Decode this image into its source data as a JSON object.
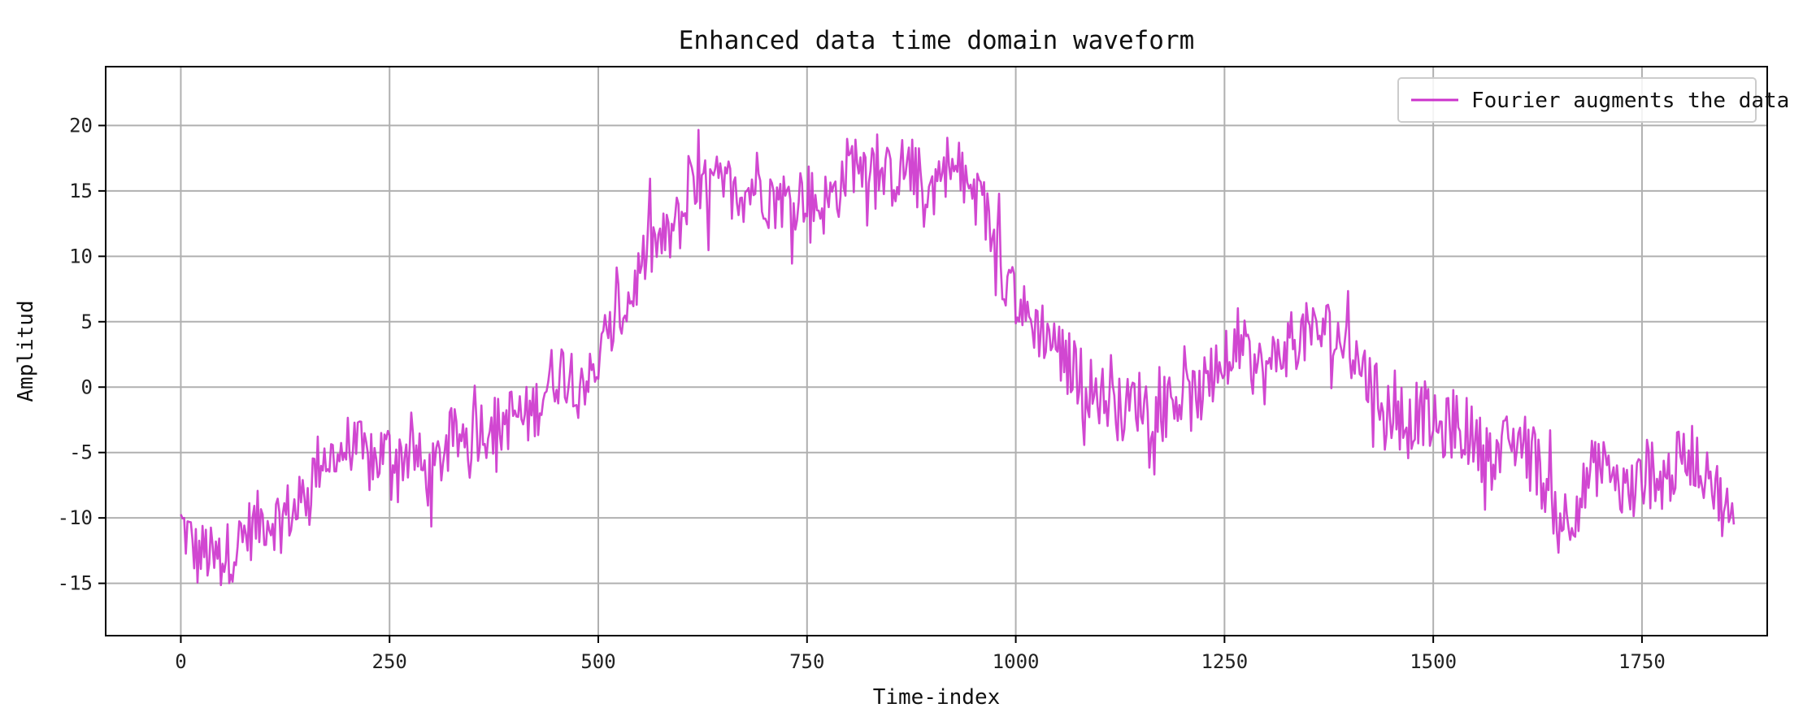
{
  "chart_data": {
    "type": "line",
    "title": "Enhanced data time domain waveform",
    "xlabel": "Time-index",
    "ylabel": "Amplitud",
    "xlim": [
      -90,
      1900
    ],
    "ylim": [
      -19,
      24.5
    ],
    "x_ticks": [
      0,
      250,
      500,
      750,
      1000,
      1250,
      1500,
      1750
    ],
    "y_ticks": [
      -15,
      -10,
      -5,
      0,
      5,
      10,
      15,
      20
    ],
    "grid": true,
    "legend_position": "top-right",
    "series": [
      {
        "name": "Fourier augments the data",
        "color": "#cc33cc",
        "x_start": 0,
        "x_step": 10,
        "values": [
          -10.5,
          -11.5,
          -13,
          -12.5,
          -13.5,
          -13,
          -12.5,
          -12,
          -11,
          -10.5,
          -10,
          -10,
          -10,
          -9.5,
          -9.5,
          -8,
          -6.5,
          -5,
          -5.5,
          -5,
          -4.5,
          -4.5,
          -5.5,
          -6,
          -5,
          -5,
          -5.5,
          -5,
          -5,
          -6.5,
          -7,
          -5.5,
          -4.5,
          -4,
          -3.5,
          -3.5,
          -3,
          -3,
          -3,
          -2.5,
          -2,
          -2.5,
          -2,
          -1,
          0.5,
          1,
          1.5,
          1,
          1,
          0.5,
          2,
          3,
          5,
          6,
          7,
          9,
          10.5,
          11,
          11,
          12,
          13,
          14.5,
          15,
          15,
          15.5,
          15,
          15.5,
          15,
          15,
          16,
          15,
          14,
          14.5,
          14,
          14.5,
          15,
          14,
          14,
          14.5,
          15.5,
          17,
          17.5,
          17,
          17,
          16,
          16,
          16.5,
          17,
          16,
          15.5,
          15,
          17,
          17,
          16,
          15.5,
          14.5,
          14,
          12,
          10,
          8,
          7,
          5.5,
          5,
          4.5,
          4,
          3,
          2,
          1.5,
          0.5,
          0,
          -0.5,
          -1,
          -1.5,
          -2,
          -1,
          -1,
          -1.5,
          -2,
          -1.5,
          -0.5,
          -1,
          -1,
          -0.5,
          0,
          1,
          2,
          2,
          3,
          2,
          1.5,
          1,
          2,
          3,
          3.5,
          4,
          4,
          4,
          4.5,
          4,
          3.5,
          3,
          2,
          1,
          -0.5,
          -1,
          -2,
          -2.5,
          -3,
          -2,
          -2,
          -3,
          -3.5,
          -3,
          -3,
          -3.5,
          -4,
          -5,
          -5.5,
          -5,
          -4.5,
          -4,
          -4.5,
          -5,
          -7,
          -8.5,
          -9.5,
          -10,
          -9,
          -8,
          -6.5,
          -6,
          -7,
          -7.5,
          -8,
          -8,
          -7,
          -6,
          -6.5,
          -7,
          -6,
          -5.5,
          -5,
          -6,
          -7,
          -8,
          -9.5,
          -10.5
        ]
      }
    ]
  }
}
